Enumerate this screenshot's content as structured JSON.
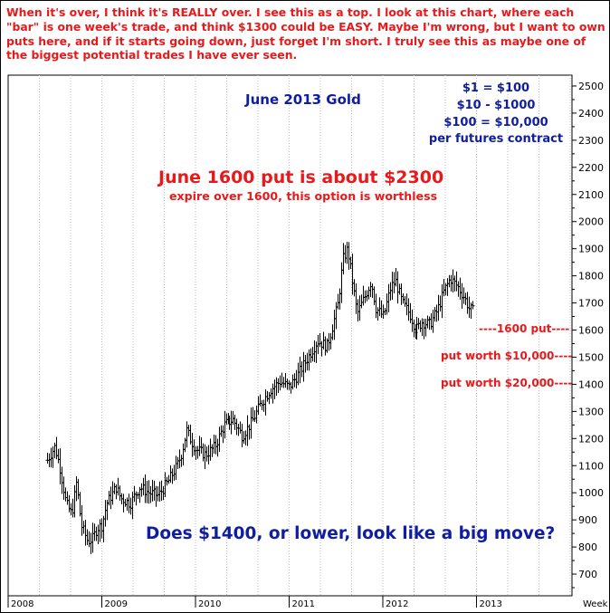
{
  "header_note": {
    "part1": "When it's over, I think it's ",
    "emph1": "REALLY",
    "part2": " over. I see this as a top. I look at this chart, where each \"bar\" is one week's trade, and think $1300 could be ",
    "emph2": "EASY",
    "part3": ". Maybe I'm wrong, but I want to own puts here, and if it starts going down, just forget I'm short. I truly see this as maybe one of the biggest potential trades I have ever seen."
  },
  "annotations": {
    "contract_title": "June 2013 Gold",
    "scale_lines": [
      "$1 = $100",
      "$10 - $1000",
      "$100 = $10,000",
      "per futures contract"
    ],
    "put_headline": "June 1600 put is about $2300",
    "put_subline": "expire over 1600, this option is worthless",
    "level_1600": "----1600 put----",
    "level_1500": "put worth $10,000----",
    "level_1400": "put worth $20,000----",
    "question": "Does $1400, or lower, look like a big move?"
  },
  "colors": {
    "red": "#e8191b",
    "blue": "#0f1ea0",
    "bars": "#000000",
    "grid": "#bbbbbb"
  },
  "chart_data": {
    "type": "bar",
    "subtype": "weekly high-low price bars",
    "title": "June 2013 Gold",
    "x_unit_label": "Week",
    "x_ticks": [
      "2008",
      "2009",
      "2010",
      "2011",
      "2012",
      "2013"
    ],
    "x_range": [
      2008.0,
      2013.0
    ],
    "ylim": [
      620,
      2540
    ],
    "y_ticks": [
      700,
      800,
      900,
      1000,
      1100,
      1200,
      1300,
      1400,
      1500,
      1600,
      1700,
      1800,
      1900,
      2000,
      2100,
      2200,
      2300,
      2400,
      2500
    ],
    "y_axis_side": "right",
    "grid": "dotted vertical",
    "reference_levels": [
      1600,
      1500,
      1400
    ],
    "price_path": [
      [
        2008.42,
        1120
      ],
      [
        2008.5,
        1170
      ],
      [
        2008.55,
        1100
      ],
      [
        2008.62,
        960
      ],
      [
        2008.68,
        920
      ],
      [
        2008.73,
        1040
      ],
      [
        2008.78,
        880
      ],
      [
        2008.85,
        820
      ],
      [
        2008.9,
        830
      ],
      [
        2008.95,
        870
      ],
      [
        2009.0,
        880
      ],
      [
        2009.05,
        960
      ],
      [
        2009.1,
        990
      ],
      [
        2009.15,
        1020
      ],
      [
        2009.2,
        980
      ],
      [
        2009.3,
        960
      ],
      [
        2009.4,
        1020
      ],
      [
        2009.5,
        1000
      ],
      [
        2009.6,
        990
      ],
      [
        2009.7,
        1040
      ],
      [
        2009.8,
        1100
      ],
      [
        2009.85,
        1150
      ],
      [
        2009.9,
        1230
      ],
      [
        2009.95,
        1190
      ],
      [
        2010.0,
        1160
      ],
      [
        2010.1,
        1140
      ],
      [
        2010.2,
        1170
      ],
      [
        2010.3,
        1250
      ],
      [
        2010.4,
        1270
      ],
      [
        2010.5,
        1210
      ],
      [
        2010.6,
        1260
      ],
      [
        2010.7,
        1330
      ],
      [
        2010.8,
        1380
      ],
      [
        2010.9,
        1410
      ],
      [
        2011.0,
        1390
      ],
      [
        2011.1,
        1440
      ],
      [
        2011.2,
        1500
      ],
      [
        2011.3,
        1560
      ],
      [
        2011.4,
        1540
      ],
      [
        2011.45,
        1600
      ],
      [
        2011.52,
        1700
      ],
      [
        2011.57,
        1860
      ],
      [
        2011.62,
        1900
      ],
      [
        2011.67,
        1780
      ],
      [
        2011.72,
        1660
      ],
      [
        2011.8,
        1720
      ],
      [
        2011.87,
        1780
      ],
      [
        2011.92,
        1680
      ],
      [
        2012.0,
        1650
      ],
      [
        2012.08,
        1760
      ],
      [
        2012.13,
        1780
      ],
      [
        2012.2,
        1700
      ],
      [
        2012.28,
        1660
      ],
      [
        2012.35,
        1600
      ],
      [
        2012.42,
        1630
      ],
      [
        2012.5,
        1620
      ],
      [
        2012.58,
        1670
      ],
      [
        2012.65,
        1740
      ],
      [
        2012.72,
        1790
      ],
      [
        2012.8,
        1760
      ],
      [
        2012.87,
        1720
      ],
      [
        2012.92,
        1680
      ],
      [
        2012.96,
        1670
      ]
    ]
  }
}
